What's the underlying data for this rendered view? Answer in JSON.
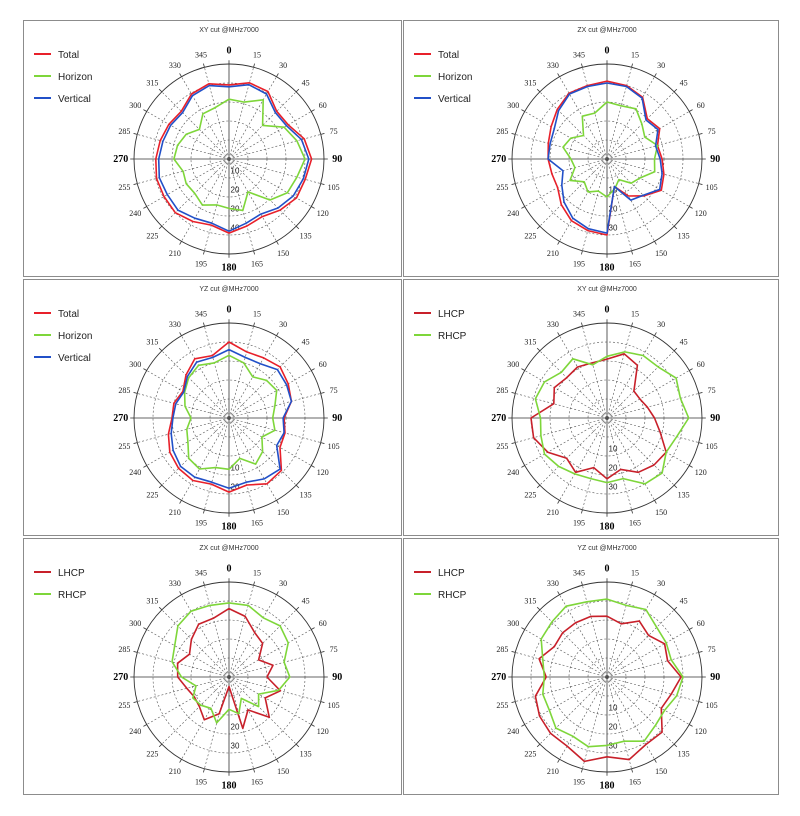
{
  "chart_data": [
    {
      "type": "polar-line",
      "title": "XY cut @MHz7000",
      "angles_deg": [
        0,
        15,
        30,
        45,
        60,
        75,
        90,
        105,
        120,
        135,
        150,
        165,
        180,
        195,
        210,
        225,
        240,
        255,
        270,
        285,
        300,
        315,
        330,
        345
      ],
      "radial_ticks": [
        "10",
        "20",
        "30",
        "40"
      ],
      "series": [
        {
          "name": "Total",
          "color": "#e8202a",
          "values": [
            0.78,
            0.83,
            0.82,
            0.71,
            0.72,
            0.82,
            0.87,
            0.83,
            0.82,
            0.76,
            0.7,
            0.73,
            0.78,
            0.72,
            0.76,
            0.8,
            0.79,
            0.79,
            0.77,
            0.75,
            0.73,
            0.71,
            0.79,
            0.82
          ]
        },
        {
          "name": "Horizon",
          "color": "#7ed63a",
          "values": [
            0.63,
            0.62,
            0.72,
            0.5,
            0.67,
            0.74,
            0.8,
            0.74,
            0.71,
            0.61,
            0.4,
            0.56,
            0.52,
            0.5,
            0.56,
            0.51,
            0.52,
            0.5,
            0.58,
            0.56,
            0.52,
            0.44,
            0.55,
            0.56
          ]
        },
        {
          "name": "Vertical",
          "color": "#2150c8",
          "values": [
            0.76,
            0.81,
            0.79,
            0.69,
            0.7,
            0.79,
            0.84,
            0.81,
            0.78,
            0.73,
            0.67,
            0.7,
            0.76,
            0.7,
            0.72,
            0.76,
            0.75,
            0.76,
            0.74,
            0.72,
            0.71,
            0.69,
            0.77,
            0.8
          ]
        }
      ]
    },
    {
      "type": "polar-line",
      "title": "ZX cut @MHz7000",
      "angles_deg": [
        0,
        15,
        30,
        45,
        60,
        75,
        90,
        105,
        120,
        135,
        150,
        165,
        180,
        195,
        210,
        225,
        240,
        255,
        270,
        285,
        300,
        315,
        330,
        345
      ],
      "radial_ticks": [
        "10",
        "20",
        "30"
      ],
      "series": [
        {
          "name": "Total",
          "color": "#e8202a",
          "values": [
            0.82,
            0.8,
            0.75,
            0.6,
            0.64,
            0.55,
            0.58,
            0.62,
            0.66,
            0.55,
            0.45,
            0.3,
            0.8,
            0.78,
            0.75,
            0.68,
            0.6,
            0.6,
            0.62,
            0.64,
            0.68,
            0.74,
            0.8,
            0.8
          ]
        },
        {
          "name": "Horizon",
          "color": "#7ed63a",
          "values": [
            0.6,
            0.58,
            0.61,
            0.52,
            0.46,
            0.55,
            0.5,
            0.52,
            0.4,
            0.36,
            0.25,
            0.32,
            0.4,
            0.35,
            0.4,
            0.34,
            0.45,
            0.35,
            0.38,
            0.48,
            0.44,
            0.35,
            0.52,
            0.5
          ]
        },
        {
          "name": "Vertical",
          "color": "#2150c8",
          "values": [
            0.8,
            0.79,
            0.74,
            0.58,
            0.62,
            0.53,
            0.56,
            0.6,
            0.64,
            0.54,
            0.5,
            0.3,
            0.78,
            0.76,
            0.72,
            0.64,
            0.55,
            0.48,
            0.62,
            0.62,
            0.64,
            0.72,
            0.79,
            0.79
          ]
        }
      ]
    },
    {
      "type": "polar-line",
      "title": "YZ cut @MHz7000",
      "angles_deg": [
        0,
        15,
        30,
        45,
        60,
        75,
        90,
        105,
        120,
        135,
        150,
        165,
        180,
        195,
        210,
        225,
        240,
        255,
        270,
        285,
        300,
        315,
        330,
        345
      ],
      "radial_ticks": [
        "10",
        "20"
      ],
      "series": [
        {
          "name": "Total",
          "color": "#e8202a",
          "values": [
            0.8,
            0.72,
            0.73,
            0.76,
            0.72,
            0.68,
            0.58,
            0.61,
            0.62,
            0.78,
            0.8,
            0.73,
            0.78,
            0.72,
            0.76,
            0.75,
            0.72,
            0.66,
            0.6,
            0.6,
            0.56,
            0.64,
            0.72,
            0.68
          ]
        },
        {
          "name": "Horizon",
          "color": "#7ed63a",
          "values": [
            0.66,
            0.6,
            0.5,
            0.56,
            0.58,
            0.5,
            0.46,
            0.5,
            0.4,
            0.5,
            0.56,
            0.44,
            0.54,
            0.54,
            0.62,
            0.6,
            0.5,
            0.46,
            0.4,
            0.48,
            0.54,
            0.6,
            0.64,
            0.6
          ]
        },
        {
          "name": "Vertical",
          "color": "#2150c8",
          "values": [
            0.72,
            0.66,
            0.66,
            0.72,
            0.7,
            0.68,
            0.57,
            0.6,
            0.58,
            0.76,
            0.74,
            0.7,
            0.74,
            0.7,
            0.72,
            0.72,
            0.68,
            0.63,
            0.59,
            0.58,
            0.55,
            0.62,
            0.68,
            0.66
          ]
        }
      ]
    },
    {
      "type": "polar-line",
      "title": "XY cut @MHz7000",
      "angles_deg": [
        0,
        15,
        30,
        45,
        60,
        75,
        90,
        105,
        120,
        135,
        150,
        165,
        180,
        195,
        210,
        225,
        240,
        255,
        270,
        285,
        300,
        315,
        330,
        345
      ],
      "radial_ticks": [
        "10",
        "20",
        "30"
      ],
      "series": [
        {
          "name": "LHCP",
          "color": "#c8202a",
          "values": [
            0.62,
            0.7,
            0.64,
            0.4,
            0.4,
            0.44,
            0.5,
            0.58,
            0.72,
            0.7,
            0.66,
            0.56,
            0.64,
            0.54,
            0.66,
            0.6,
            0.72,
            0.8,
            0.8,
            0.58,
            0.64,
            0.6,
            0.62,
            0.6
          ]
        },
        {
          "name": "RHCP",
          "color": "#7ed63a",
          "values": [
            0.65,
            0.72,
            0.76,
            0.76,
            0.84,
            0.8,
            0.86,
            0.76,
            0.72,
            0.82,
            0.8,
            0.66,
            0.68,
            0.66,
            0.68,
            0.72,
            0.76,
            0.72,
            0.7,
            0.78,
            0.76,
            0.68,
            0.72,
            0.58
          ]
        }
      ]
    },
    {
      "type": "polar-line",
      "title": "ZX cut @MHz7000",
      "angles_deg": [
        0,
        15,
        30,
        45,
        60,
        75,
        90,
        105,
        120,
        135,
        150,
        165,
        180,
        195,
        210,
        225,
        240,
        255,
        270,
        285,
        300,
        315,
        330,
        345
      ],
      "radial_ticks": [
        "20",
        "30"
      ],
      "series": [
        {
          "name": "LHCP",
          "color": "#c8202a",
          "values": [
            0.72,
            0.66,
            0.54,
            0.5,
            0.36,
            0.48,
            0.4,
            0.56,
            0.44,
            0.6,
            0.4,
            0.56,
            0.1,
            0.4,
            0.52,
            0.44,
            0.42,
            0.46,
            0.54,
            0.56,
            0.48,
            0.56,
            0.64,
            0.64
          ]
        },
        {
          "name": "RHCP",
          "color": "#7ed63a",
          "values": [
            0.78,
            0.78,
            0.72,
            0.76,
            0.72,
            0.6,
            0.64,
            0.54,
            0.36,
            0.44,
            0.26,
            0.4,
            0.34,
            0.5,
            0.38,
            0.42,
            0.44,
            0.36,
            0.5,
            0.62,
            0.66,
            0.76,
            0.8,
            0.78
          ]
        }
      ]
    },
    {
      "type": "polar-line",
      "title": "YZ cut @MHz7000",
      "angles_deg": [
        0,
        15,
        30,
        45,
        60,
        75,
        90,
        105,
        120,
        135,
        150,
        165,
        180,
        195,
        210,
        225,
        240,
        255,
        270,
        285,
        300,
        315,
        330,
        345
      ],
      "radial_ticks": [
        "10",
        "20",
        "30"
      ],
      "series": [
        {
          "name": "LHCP",
          "color": "#c8202a",
          "values": [
            0.64,
            0.58,
            0.68,
            0.62,
            0.7,
            0.66,
            0.78,
            0.7,
            0.66,
            0.82,
            0.82,
            0.9,
            0.84,
            0.92,
            0.84,
            0.84,
            0.82,
            0.78,
            0.64,
            0.74,
            0.64,
            0.66,
            0.66,
            0.66
          ]
        },
        {
          "name": "RHCP",
          "color": "#7ed63a",
          "values": [
            0.82,
            0.78,
            0.82,
            0.74,
            0.72,
            0.7,
            0.8,
            0.76,
            0.7,
            0.72,
            0.78,
            0.7,
            0.72,
            0.76,
            0.72,
            0.76,
            0.7,
            0.7,
            0.66,
            0.7,
            0.8,
            0.82,
            0.86,
            0.82
          ]
        }
      ]
    }
  ]
}
